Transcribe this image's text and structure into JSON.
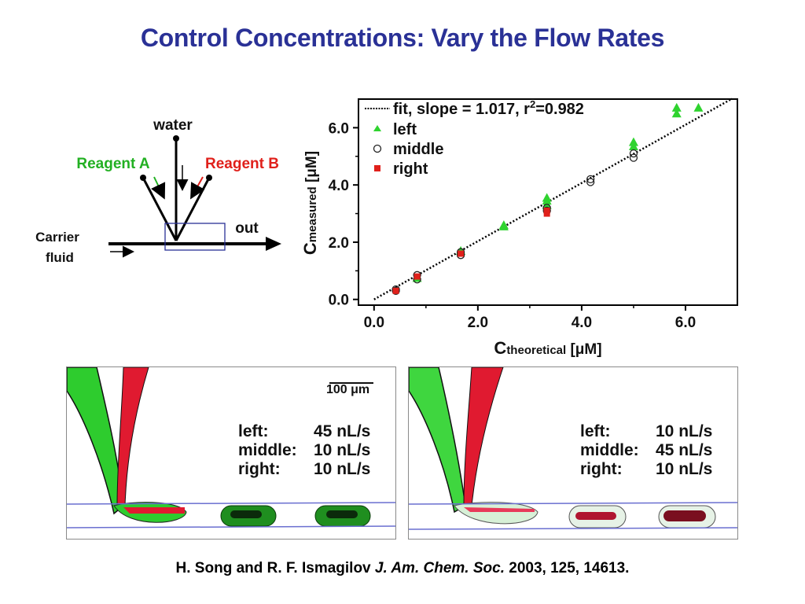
{
  "slide": {
    "title": "Control Concentrations: Vary the Flow Rates",
    "citation": {
      "authors": "H. Song and R. F. Ismagilov",
      "journal": "J. Am. Chem. Soc.",
      "details": "2003, 125, 14613."
    }
  },
  "diagram": {
    "water": "water",
    "reagent_a": "Reagent A",
    "reagent_b": "Reagent B",
    "carrier_1": "Carrier",
    "carrier_2": "fluid",
    "out": "out",
    "colors": {
      "reagent_a": "#22b022",
      "reagent_b": "#e0201b",
      "box": "#2a3196"
    }
  },
  "chart_data": {
    "type": "scatter",
    "xlabel_main": "C",
    "xlabel_sub": "theoretical",
    "xlabel_unit": " [μM]",
    "ylabel_main": "C",
    "ylabel_sub": "measured",
    "ylabel_unit": " [μM]",
    "xlim": [
      -0.3,
      7.0
    ],
    "ylim": [
      -0.2,
      7.0
    ],
    "xticks": [
      "0.0",
      "2.0",
      "4.0",
      "6.0"
    ],
    "yticks": [
      "0.0",
      "2.0",
      "4.0",
      "6.0"
    ],
    "legend": {
      "fit_label": "fit, slope = 1.017, r",
      "fit_sup": "2",
      "fit_tail": "=0.982",
      "placement": "top-left"
    },
    "fit": {
      "slope": 1.017,
      "r2": 0.982,
      "x": [
        0.0,
        6.9
      ]
    },
    "series": [
      {
        "name": "left",
        "marker": "triangle",
        "color": "#2fd32f",
        "points": [
          [
            0.83,
            0.75
          ],
          [
            1.67,
            1.7
          ],
          [
            2.5,
            2.6
          ],
          [
            2.5,
            2.55
          ],
          [
            3.33,
            3.55
          ],
          [
            3.33,
            3.45
          ],
          [
            3.33,
            3.3
          ],
          [
            5.0,
            5.5
          ],
          [
            5.0,
            5.35
          ],
          [
            5.83,
            6.7
          ],
          [
            5.83,
            6.5
          ],
          [
            6.25,
            6.7
          ]
        ]
      },
      {
        "name": "middle",
        "marker": "circle",
        "color": "#222222",
        "points": [
          [
            0.42,
            0.35
          ],
          [
            0.42,
            0.3
          ],
          [
            0.83,
            0.85
          ],
          [
            0.83,
            0.7
          ],
          [
            1.67,
            1.65
          ],
          [
            1.67,
            1.55
          ],
          [
            3.33,
            3.2
          ],
          [
            3.33,
            3.1
          ],
          [
            4.17,
            4.2
          ],
          [
            4.17,
            4.1
          ],
          [
            5.0,
            5.1
          ],
          [
            5.0,
            4.95
          ]
        ]
      },
      {
        "name": "right",
        "marker": "square",
        "color": "#e0201b",
        "points": [
          [
            0.42,
            0.3
          ],
          [
            0.83,
            0.8
          ],
          [
            1.67,
            1.6
          ],
          [
            3.33,
            3.0
          ],
          [
            3.33,
            3.1
          ]
        ]
      }
    ]
  },
  "photos": [
    {
      "scale_label": "100 μm",
      "rates": [
        {
          "label": "left:",
          "value": "45 nL/s"
        },
        {
          "label": "middle:",
          "value": "10 nL/s"
        },
        {
          "label": "right:",
          "value": "10 nL/s"
        }
      ]
    },
    {
      "rates": [
        {
          "label": "left:",
          "value": "10 nL/s"
        },
        {
          "label": "middle:",
          "value": "45 nL/s"
        },
        {
          "label": "right:",
          "value": "10 nL/s"
        }
      ]
    }
  ]
}
